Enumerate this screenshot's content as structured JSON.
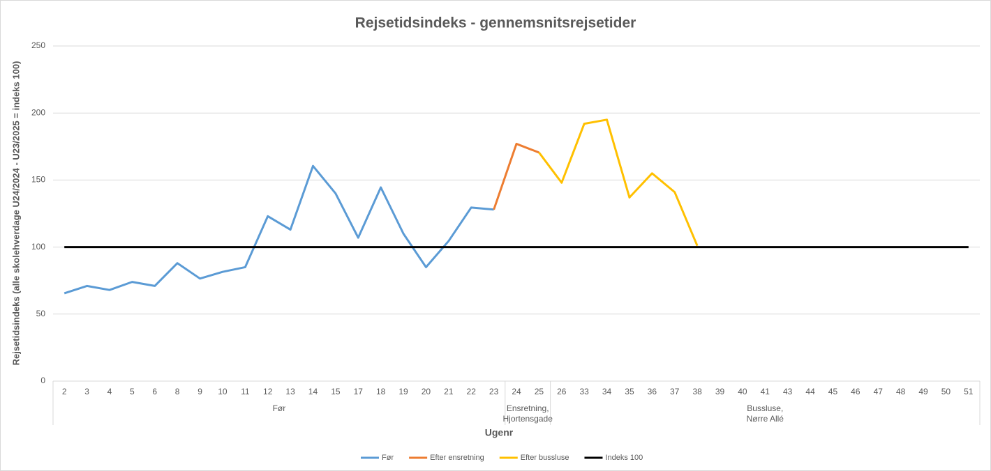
{
  "chart_data": {
    "type": "line",
    "title": "Rejsetidsindeks - gennemsnitsrejsetider",
    "x_label": "Ugenr",
    "y_label": "Rejsetidsindeks (alle skolehverdage U24/2024 - U23/2025 = indeks 100)",
    "categories": [
      "2",
      "3",
      "4",
      "5",
      "6",
      "8",
      "9",
      "10",
      "11",
      "12",
      "13",
      "14",
      "15",
      "17",
      "18",
      "19",
      "20",
      "21",
      "22",
      "23",
      "24",
      "25",
      "26",
      "33",
      "34",
      "35",
      "36",
      "37",
      "38",
      "39",
      "40",
      "41",
      "43",
      "44",
      "45",
      "46",
      "47",
      "48",
      "49",
      "50",
      "51"
    ],
    "groups": [
      {
        "label": [
          "Før"
        ],
        "span": 20
      },
      {
        "label": [
          "Ensretning,",
          "Hjortensgade"
        ],
        "span": 2
      },
      {
        "label": [
          "Bussluse,",
          "Nørre Allé"
        ],
        "span": 19
      }
    ],
    "series": [
      {
        "name": "Før",
        "color": "#5b9bd5",
        "values": [
          65.5,
          71,
          68,
          74,
          71,
          88,
          76.5,
          81.5,
          85,
          123,
          113,
          160.5,
          140,
          107,
          144.5,
          110,
          85,
          104.5,
          129.5,
          128,
          null,
          null,
          null,
          null,
          null,
          null,
          null,
          null,
          null,
          null,
          null,
          null,
          null,
          null,
          null,
          null,
          null,
          null,
          null,
          null,
          null
        ]
      },
      {
        "name": "Efter ensretning",
        "color": "#ed7d31",
        "values": [
          null,
          null,
          null,
          null,
          null,
          null,
          null,
          null,
          null,
          null,
          null,
          null,
          null,
          null,
          null,
          null,
          null,
          null,
          null,
          128,
          177,
          170.5,
          null,
          null,
          null,
          null,
          null,
          null,
          null,
          null,
          null,
          null,
          null,
          null,
          null,
          null,
          null,
          null,
          null,
          null,
          null
        ]
      },
      {
        "name": "Efter bussluse",
        "color": "#ffc000",
        "values": [
          null,
          null,
          null,
          null,
          null,
          null,
          null,
          null,
          null,
          null,
          null,
          null,
          null,
          null,
          null,
          null,
          null,
          null,
          null,
          null,
          null,
          170.5,
          148,
          192,
          195,
          137,
          155,
          141,
          101,
          null,
          null,
          null,
          null,
          null,
          null,
          null,
          null,
          null,
          null,
          null,
          null
        ]
      },
      {
        "name": "Indeks 100",
        "color": "#000000",
        "values": [
          100,
          100,
          100,
          100,
          100,
          100,
          100,
          100,
          100,
          100,
          100,
          100,
          100,
          100,
          100,
          100,
          100,
          100,
          100,
          100,
          100,
          100,
          100,
          100,
          100,
          100,
          100,
          100,
          100,
          100,
          100,
          100,
          100,
          100,
          100,
          100,
          100,
          100,
          100,
          100,
          100
        ]
      }
    ],
    "ylim": [
      0,
      250
    ],
    "yticks": [
      0,
      50,
      100,
      150,
      200,
      250
    ],
    "grid": true,
    "legend": "bottom"
  }
}
